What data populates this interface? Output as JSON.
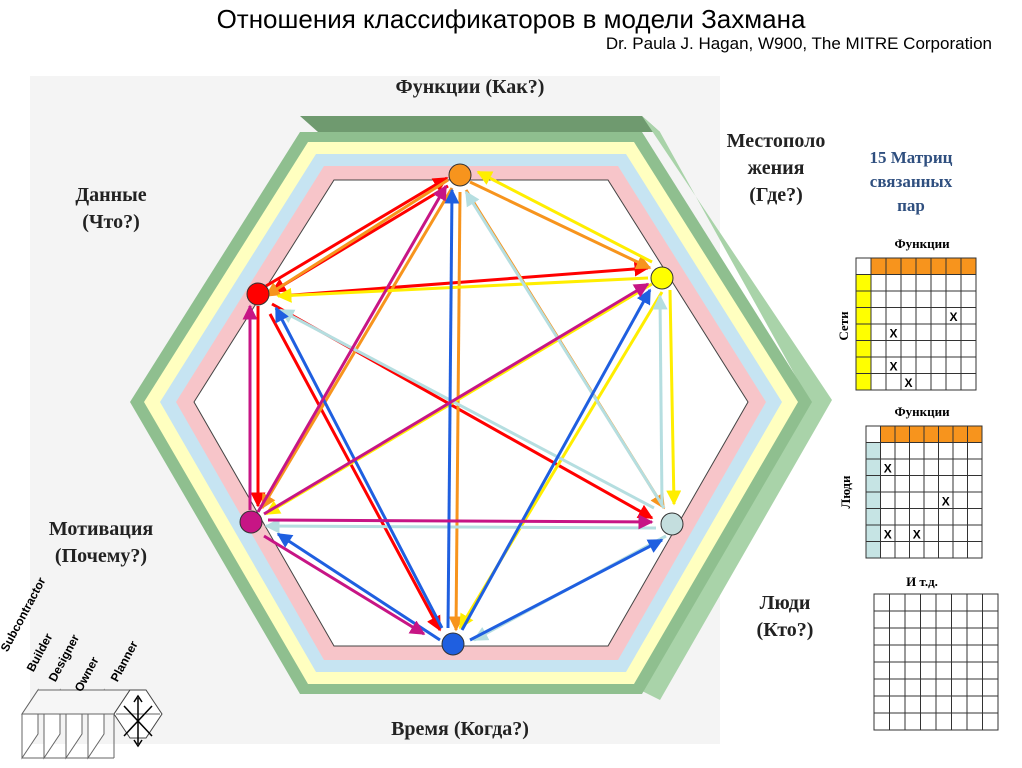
{
  "header": {
    "title": "Отношения классификаторов в модели Захмана",
    "subtitle": "Dr. Paula J. Hagan, W900, The MITRE Corporation"
  },
  "hexagon": {
    "labels": {
      "top": "Функции (Как?)",
      "top_right": [
        "Местополо",
        "жения",
        "(Где?)"
      ],
      "top_left": [
        "Данные",
        "(Что?)"
      ],
      "bottom_left": [
        "Мотивация",
        "(Почему?)"
      ],
      "bottom_right": [
        "Люди",
        "(Кто?)"
      ],
      "bottom": "Время (Когда?)"
    },
    "nodes": [
      {
        "id": "functions",
        "color": "#f7941d"
      },
      {
        "id": "locations",
        "color": "#ffff00"
      },
      {
        "id": "people",
        "color": "#c4dede"
      },
      {
        "id": "time",
        "color": "#1f5fe0"
      },
      {
        "id": "motivation",
        "color": "#c71585"
      },
      {
        "id": "data",
        "color": "#ff0000"
      }
    ],
    "ring_colors": [
      "#8fbf8f",
      "#ffffc0",
      "#c6e4f2",
      "#f7c5c9"
    ]
  },
  "sidebar": {
    "title": [
      "15 Матриц",
      "связанных",
      "пар"
    ],
    "matrices": [
      {
        "top_label": "Функции",
        "side_label": "Сети",
        "header_color": "#f7941d",
        "side_color": "#ffff00"
      },
      {
        "top_label": "Функции",
        "side_label": "Люди",
        "header_color": "#f7941d",
        "side_color": "#c6e4e4"
      },
      {
        "top_label": "И т.д.",
        "side_label": "",
        "header_color": "#ffffff",
        "side_color": "#ffffff"
      }
    ],
    "mark": "X"
  },
  "layers": {
    "items": [
      "Subcontractor",
      "Builder",
      "Designer",
      "Owner",
      "Planner"
    ]
  }
}
